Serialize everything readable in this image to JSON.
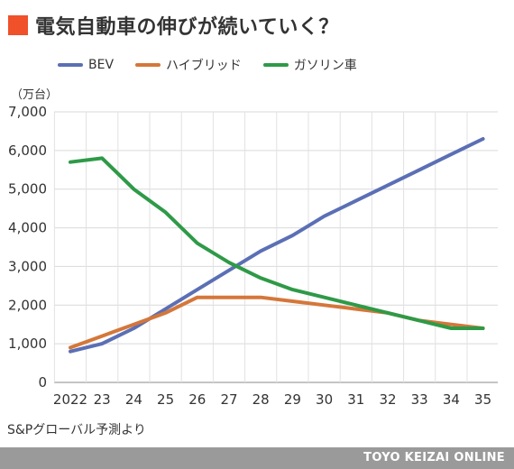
{
  "header": {
    "title": "電気自動車の伸びが続いていく？",
    "accent_color": "#f0502a"
  },
  "chart_data": {
    "type": "line",
    "title": "電気自動車の伸びが続いていく？",
    "unit_label": "（万台）",
    "categories": [
      "2022",
      "23",
      "24",
      "25",
      "26",
      "27",
      "28",
      "29",
      "30",
      "31",
      "32",
      "33",
      "34",
      "35"
    ],
    "series": [
      {
        "name": "BEV",
        "color": "#5b6fb5",
        "values": [
          800,
          1000,
          1400,
          1900,
          2400,
          2900,
          3400,
          3800,
          4300,
          4700,
          5100,
          5500,
          5900,
          6300
        ]
      },
      {
        "name": "ハイブリッド",
        "color": "#d4773a",
        "values": [
          900,
          1200,
          1500,
          1800,
          2200,
          2200,
          2200,
          2100,
          2000,
          1900,
          1800,
          1600,
          1500,
          1400
        ]
      },
      {
        "name": "ガソリン車",
        "color": "#2e9a47",
        "values": [
          5700,
          5800,
          5000,
          4400,
          3600,
          3100,
          2700,
          2400,
          2200,
          2000,
          1800,
          1600,
          1400,
          1400
        ]
      }
    ],
    "y_ticks": [
      "0",
      "1,000",
      "2,000",
      "3,000",
      "4,000",
      "5,000",
      "6,000",
      "7,000"
    ],
    "ylim": [
      0,
      7000
    ],
    "grid": true,
    "legend_position": "top-left"
  },
  "footer": {
    "source": "S&Pグローバル予測より",
    "brand": "TOYO KEIZAI ONLINE"
  }
}
